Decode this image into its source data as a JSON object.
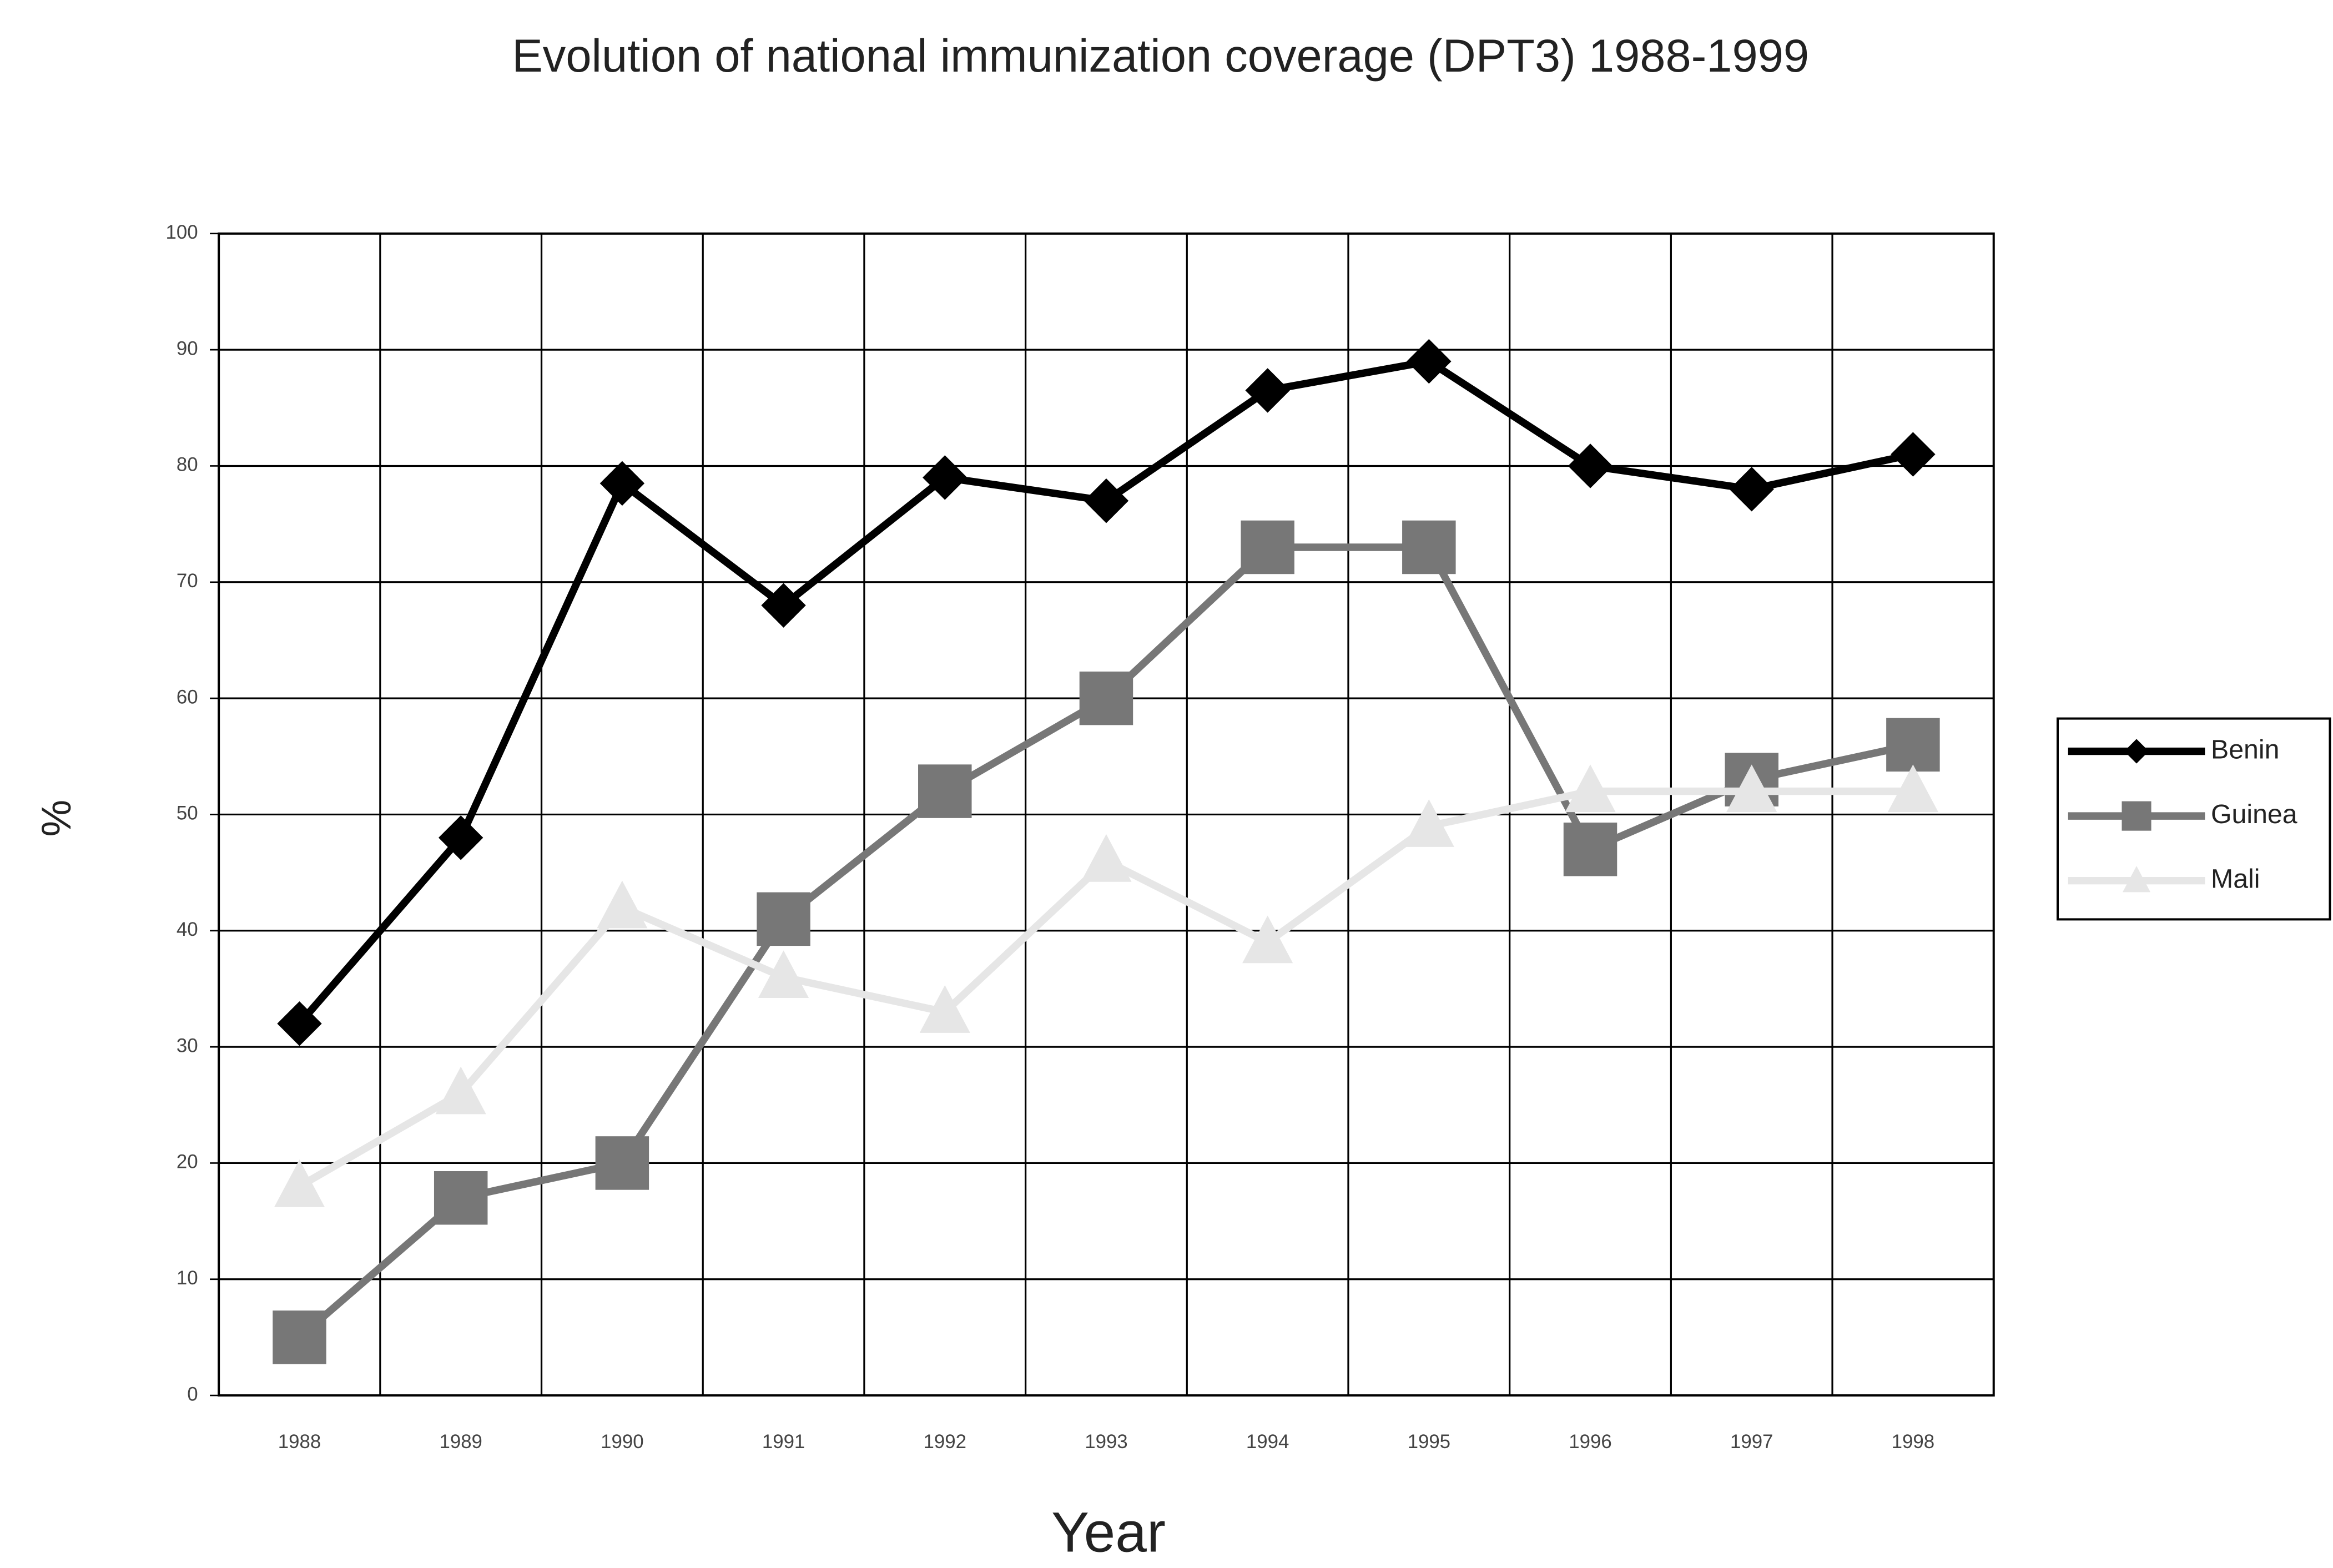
{
  "chart_data": {
    "type": "line",
    "title": "Evolution of national immunization coverage (DPT3) 1988-1999",
    "xlabel": "Year",
    "ylabel": "%",
    "categories": [
      "1988",
      "1989",
      "1990",
      "1991",
      "1992",
      "1993",
      "1994",
      "1995",
      "1996",
      "1997",
      "1998"
    ],
    "series": [
      {
        "name": "Benin",
        "color": "#000000",
        "marker": "diamond",
        "values": [
          32,
          48,
          78.5,
          68,
          79,
          77,
          86.5,
          89,
          80,
          78,
          81
        ]
      },
      {
        "name": "Guinea",
        "color": "#777777",
        "marker": "square",
        "values": [
          5,
          17,
          20,
          41,
          52,
          60,
          73,
          73,
          47,
          53,
          56
        ]
      },
      {
        "name": "Mali",
        "color": "#e6e6e6",
        "marker": "triangle",
        "values": [
          18,
          26,
          42,
          36,
          33,
          46,
          39,
          49,
          52,
          52,
          52
        ]
      }
    ],
    "ylim": [
      0,
      100
    ],
    "yticks": [
      0,
      10,
      20,
      30,
      40,
      50,
      60,
      70,
      80,
      90,
      100
    ],
    "grid": true,
    "legend": "right"
  }
}
